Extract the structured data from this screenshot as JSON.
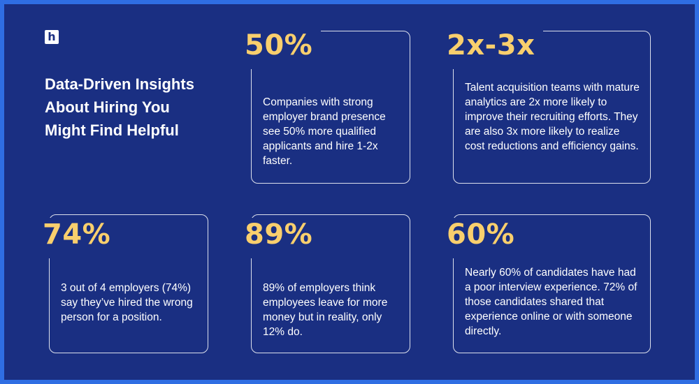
{
  "headline": "Data-Driven Insights About Hiring You Might Find Helpful",
  "colors": {
    "background": "#1a2f82",
    "border": "#2f6ee3",
    "accent": "#f9cf6d",
    "text": "#ffffff"
  },
  "logo": {
    "icon": "hiring-logo-icon",
    "glyph": "h"
  },
  "cards": [
    {
      "stat": "50%",
      "text": "Companies with strong employer brand presence see 50% more qualified applicants and hire 1-2x faster."
    },
    {
      "stat": "2x-3x",
      "text": "Talent acquisition teams with mature analytics are 2x more likely to improve their recruiting efforts. They are also 3x more likely to realize cost reductions and efficiency gains."
    },
    {
      "stat": "74%",
      "text": "3 out of 4 employers (74%) say they’ve hired the wrong person for a position."
    },
    {
      "stat": "89%",
      "text": "89% of employers think employees leave for more money but in reality, only 12% do."
    },
    {
      "stat": "60%",
      "text": "Nearly 60% of candidates have had a poor interview experience. 72% of those candidates shared that experience online or with someone directly."
    }
  ]
}
